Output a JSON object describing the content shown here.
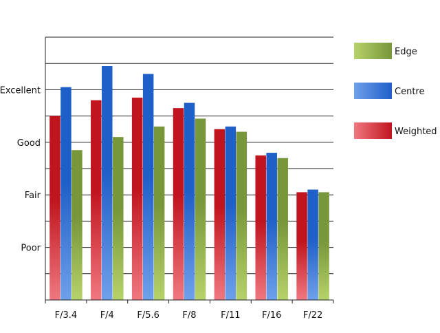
{
  "chart_data": {
    "type": "bar",
    "title": "",
    "xlabel": "",
    "ylabel": "",
    "categories": [
      "F/3.4",
      "F/4",
      "F/5.6",
      "F/8",
      "F/11",
      "F/16",
      "F/22"
    ],
    "y_tick_labels": [
      {
        "label": "Poor",
        "value": 2
      },
      {
        "label": "Fair",
        "value": 4
      },
      {
        "label": "Good",
        "value": 6
      },
      {
        "label": "Excellent",
        "value": 8
      }
    ],
    "ylim": [
      0,
      10
    ],
    "grid": true,
    "legend_position": "right",
    "series": [
      {
        "name": "Weighted",
        "color": "#c0141e",
        "light": "#f07880",
        "values": [
          7.0,
          7.6,
          7.7,
          7.3,
          6.5,
          5.5,
          4.1
        ]
      },
      {
        "name": "Centre",
        "color": "#1f5fc8",
        "light": "#6fa0ea",
        "values": [
          8.1,
          8.9,
          8.6,
          7.5,
          6.6,
          5.6,
          4.2
        ]
      },
      {
        "name": "Edge",
        "color": "#78963a",
        "light": "#b6d26a",
        "values": [
          5.7,
          6.2,
          6.6,
          6.9,
          6.4,
          5.4,
          4.1
        ]
      }
    ],
    "legend_order": [
      "Edge",
      "Centre",
      "Weighted"
    ]
  }
}
